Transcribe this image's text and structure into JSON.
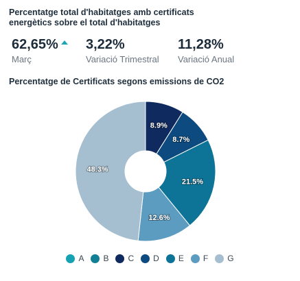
{
  "header": {
    "title_line1": "Percentatge total d'habitatges amb certificats",
    "title_line2": "energètics sobre el total d'habitatges"
  },
  "kpis": [
    {
      "value": "62,65%",
      "label": "Març",
      "trend": "up",
      "trend_color": "#1aa6b7"
    },
    {
      "value": "3,22%",
      "label": "Variació Trimestral"
    },
    {
      "value": "11,28%",
      "label": "Variació Anual"
    }
  ],
  "chart_data": {
    "type": "pie",
    "variant": "donut",
    "title": "Percentatge de Certificats segons emissions de CO2",
    "categories": [
      "A",
      "B",
      "C",
      "D",
      "E",
      "F",
      "G"
    ],
    "values": [
      0,
      0,
      8.9,
      8.7,
      21.5,
      12.6,
      48.3
    ],
    "value_labels": [
      "",
      "",
      "8.9%",
      "8.7%",
      "21.5%",
      "12.6%",
      "48.3%"
    ],
    "colors": [
      "#17a2b4",
      "#137f95",
      "#0f2a5e",
      "#0d4a80",
      "#0d7397",
      "#5b9cc0",
      "#a5bfd0"
    ],
    "legend_position": "bottom"
  }
}
